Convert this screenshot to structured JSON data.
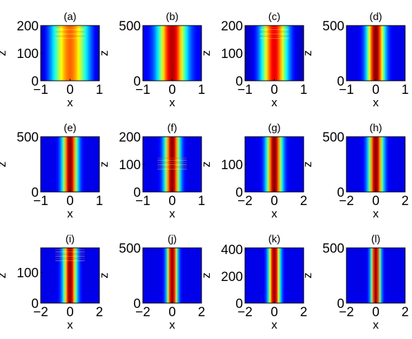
{
  "figure": {
    "background": "#ffffff"
  },
  "colormap": [
    "#00008f",
    "#0000ff",
    "#0080ff",
    "#00ffff",
    "#80ff80",
    "#ffff00",
    "#ff8000",
    "#ff0000",
    "#800000"
  ],
  "chart_data": [
    {
      "type": "heatmap",
      "title": "(a)",
      "xlabel": "x",
      "ylabel": "z",
      "xlim": [
        -1,
        1
      ],
      "ylim": [
        0,
        200
      ],
      "xticks": [
        -1,
        0,
        1
      ],
      "yticks": [
        0,
        100,
        200
      ],
      "profile": {
        "width": 0.45,
        "peak": 0.78,
        "base": 0.08,
        "edge": 0.08
      },
      "top_perturbation": true
    },
    {
      "type": "heatmap",
      "title": "(b)",
      "xlabel": "x",
      "ylabel": "z",
      "xlim": [
        -1,
        1
      ],
      "ylim": [
        0,
        500
      ],
      "xticks": [
        -1,
        0,
        1
      ],
      "yticks": [
        0,
        500
      ],
      "profile": {
        "width": 0.32,
        "peak": 0.95,
        "base": 0.1,
        "edge": 0
      }
    },
    {
      "type": "heatmap",
      "title": "(c)",
      "xlabel": "x",
      "ylabel": "z",
      "xlim": [
        -1,
        1
      ],
      "ylim": [
        0,
        200
      ],
      "xticks": [
        -1,
        0,
        1
      ],
      "yticks": [
        0,
        100,
        200
      ],
      "profile": {
        "width": 0.3,
        "peak": 0.9,
        "base": 0.1,
        "edge": 0.05
      },
      "top_perturbation": true
    },
    {
      "type": "heatmap",
      "title": "(d)",
      "xlabel": "x",
      "ylabel": "z",
      "xlim": [
        -1,
        1
      ],
      "ylim": [
        0,
        500
      ],
      "xticks": [
        -1,
        0,
        1
      ],
      "yticks": [
        0,
        500
      ],
      "profile": {
        "width": 0.2,
        "peak": 1,
        "base": 0.1,
        "edge": 0
      }
    },
    {
      "type": "heatmap",
      "title": "(e)",
      "xlabel": "x",
      "ylabel": "z",
      "xlim": [
        -1,
        1
      ],
      "ylim": [
        0,
        500
      ],
      "xticks": [
        -1,
        0,
        1
      ],
      "yticks": [
        0,
        500
      ],
      "profile": {
        "width": 0.17,
        "peak": 1,
        "base": 0.1,
        "edge": 0
      }
    },
    {
      "type": "heatmap",
      "title": "(f)",
      "xlabel": "x",
      "ylabel": "z",
      "xlim": [
        -1,
        1
      ],
      "ylim": [
        0,
        200
      ],
      "xticks": [
        -1,
        0,
        1
      ],
      "yticks": [
        0,
        100,
        200
      ],
      "profile": {
        "width": 0.17,
        "peak": 1,
        "base": 0.1,
        "edge": 0
      },
      "mid_perturbation": true
    },
    {
      "type": "heatmap",
      "title": "(g)",
      "xlabel": "x",
      "ylabel": "z",
      "xlim": [
        -2,
        2
      ],
      "ylim": [
        0,
        200
      ],
      "xticks": [
        -2,
        0,
        2
      ],
      "yticks": [
        0,
        100
      ],
      "profile": {
        "width": 0.35,
        "peak": 1,
        "base": 0.1,
        "edge": 0
      }
    },
    {
      "type": "heatmap",
      "title": "(h)",
      "xlabel": "x",
      "ylabel": "z",
      "xlim": [
        -2,
        2
      ],
      "ylim": [
        0,
        500
      ],
      "xticks": [
        -2,
        0,
        2
      ],
      "yticks": [
        0,
        500
      ],
      "profile": {
        "width": 0.33,
        "peak": 1,
        "base": 0.1,
        "edge": 0
      }
    },
    {
      "type": "heatmap",
      "title": "(i)",
      "xlabel": "x",
      "ylabel": "z",
      "xlim": [
        -2,
        2
      ],
      "ylim": [
        0,
        180
      ],
      "xticks": [
        -2,
        0,
        2
      ],
      "yticks": [
        0,
        100
      ],
      "profile": {
        "width": 0.3,
        "peak": 1,
        "base": 0.1,
        "edge": 0
      },
      "top_perturbation": true
    },
    {
      "type": "heatmap",
      "title": "(j)",
      "xlabel": "x",
      "ylabel": "z",
      "xlim": [
        -2,
        2
      ],
      "ylim": [
        0,
        500
      ],
      "xticks": [
        -2,
        0,
        2
      ],
      "yticks": [
        0,
        500
      ],
      "profile": {
        "width": 0.24,
        "peak": 1,
        "base": 0.1,
        "edge": 0
      }
    },
    {
      "type": "heatmap",
      "title": "(k)",
      "xlabel": "x",
      "ylabel": "z",
      "xlim": [
        -2,
        2
      ],
      "ylim": [
        0,
        410
      ],
      "xticks": [
        -2,
        0,
        2
      ],
      "yticks": [
        0,
        200,
        400
      ],
      "profile": {
        "width": 0.26,
        "peak": 1,
        "base": 0.1,
        "edge": 0
      }
    },
    {
      "type": "heatmap",
      "title": "(l)",
      "xlabel": "x",
      "ylabel": "z",
      "xlim": [
        -2,
        2
      ],
      "ylim": [
        0,
        500
      ],
      "xticks": [
        -2,
        0,
        2
      ],
      "yticks": [
        0,
        500
      ],
      "profile": {
        "width": 0.22,
        "peak": 1,
        "base": 0.1,
        "edge": 0
      }
    }
  ]
}
